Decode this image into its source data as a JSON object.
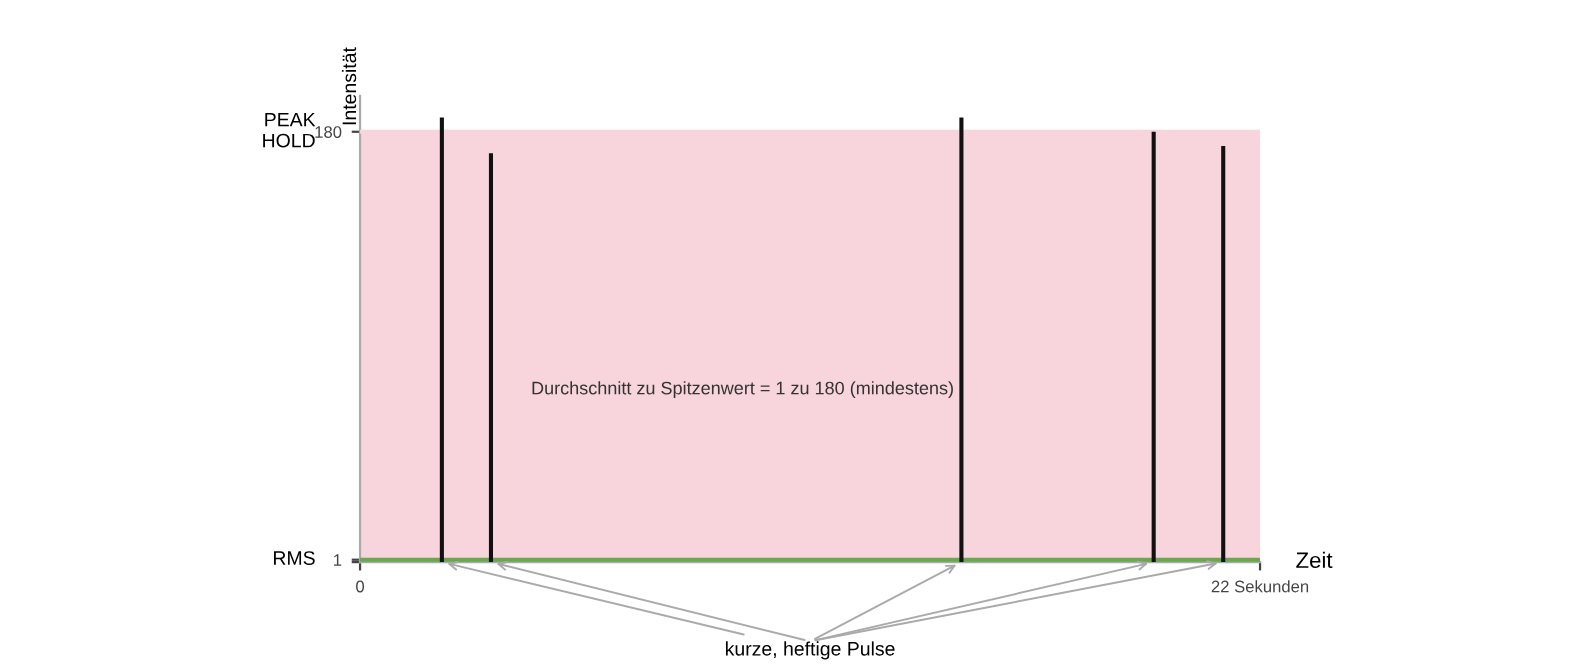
{
  "chart_data": {
    "type": "bar",
    "x": [
      2.0,
      3.2,
      14.7,
      19.4,
      21.1
    ],
    "values": [
      186,
      171,
      186,
      180,
      174
    ],
    "color": "#111111",
    "xlim": [
      0,
      22
    ],
    "ylim": [
      0,
      195
    ],
    "xticks": [
      0,
      {
        "value": 22,
        "label": "22 Sekunden"
      }
    ],
    "yticks": [
      {
        "value": 0,
        "label": null
      },
      1,
      180
    ],
    "xlabel": "Zeit",
    "ylabel": "Intensität",
    "bands": [
      {
        "axis": "y",
        "from": 1,
        "to": 180,
        "color": "#f8d4dc"
      }
    ],
    "ref_lines": [
      {
        "axis": "y",
        "value": 1,
        "label": "RMS",
        "color": "#6aa84f"
      },
      {
        "axis": "y",
        "value": 180,
        "label": "PEAK\nHOLD",
        "color": "#f8d4dc"
      }
    ],
    "annotations": [
      "Durchschnitt zu Spitzenwert = 1 zu 180 (mindestens)",
      {
        "text": "kurze, heftige Pulse",
        "x": 2.0,
        "y": 0
      }
    ],
    "grid": false
  }
}
